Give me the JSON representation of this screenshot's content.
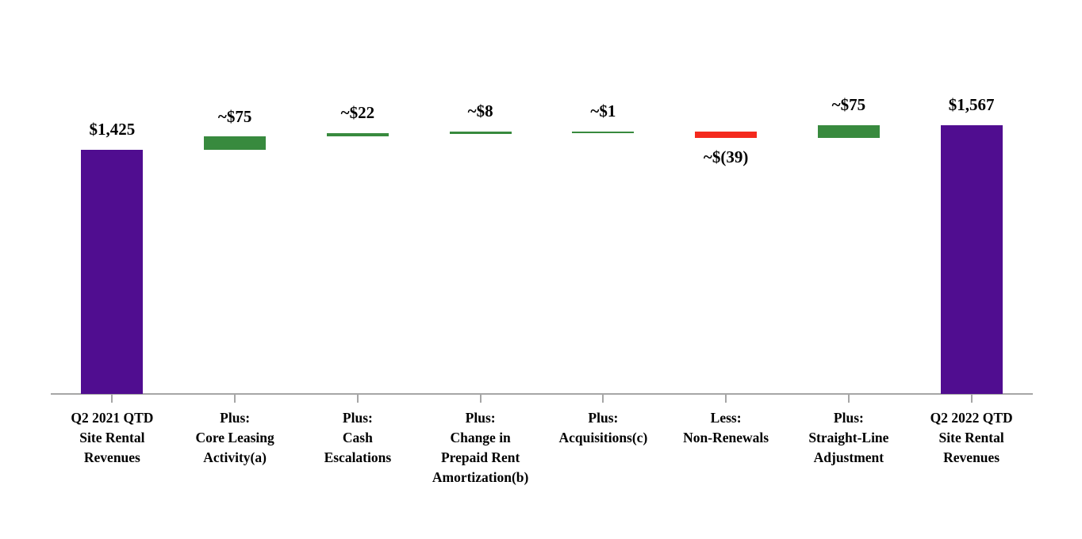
{
  "chart_data": {
    "type": "bar",
    "subtype": "waterfall",
    "title": "",
    "xlabel": "",
    "ylabel": "",
    "grid": false,
    "legend": null,
    "background": "#FFFFFF",
    "ylim": [
      0,
      1567
    ],
    "colors": {
      "total": "#500D90",
      "increase": "#388A3E",
      "decrease": "#F4291D",
      "axis": "#A6A6A6",
      "text": "#000000"
    },
    "steps": [
      {
        "category": "Q2 2021 QTD\nSite Rental\nRevenues",
        "label": "$1,425",
        "value": 1425,
        "kind": "total"
      },
      {
        "category": "Plus:\nCore Leasing\nActivity(a)",
        "label": "~$75",
        "value": 75,
        "kind": "increase"
      },
      {
        "category": "Plus:\nCash\nEscalations",
        "label": "~$22",
        "value": 22,
        "kind": "increase"
      },
      {
        "category": "Plus:\nChange in\nPrepaid Rent\nAmortization(b)",
        "label": "~$8",
        "value": 8,
        "kind": "increase"
      },
      {
        "category": "Plus:\nAcquisitions(c)",
        "label": "~$1",
        "value": 1,
        "kind": "increase"
      },
      {
        "category": "Less:\nNon-Renewals",
        "label": "~$(39)",
        "value": -39,
        "kind": "decrease"
      },
      {
        "category": "Plus:\nStraight-Line\nAdjustment",
        "label": "~$75",
        "value": 75,
        "kind": "increase"
      },
      {
        "category": "Q2 2022 QTD\nSite Rental\nRevenues",
        "label": "$1,567",
        "value": 1567,
        "kind": "total"
      }
    ]
  }
}
